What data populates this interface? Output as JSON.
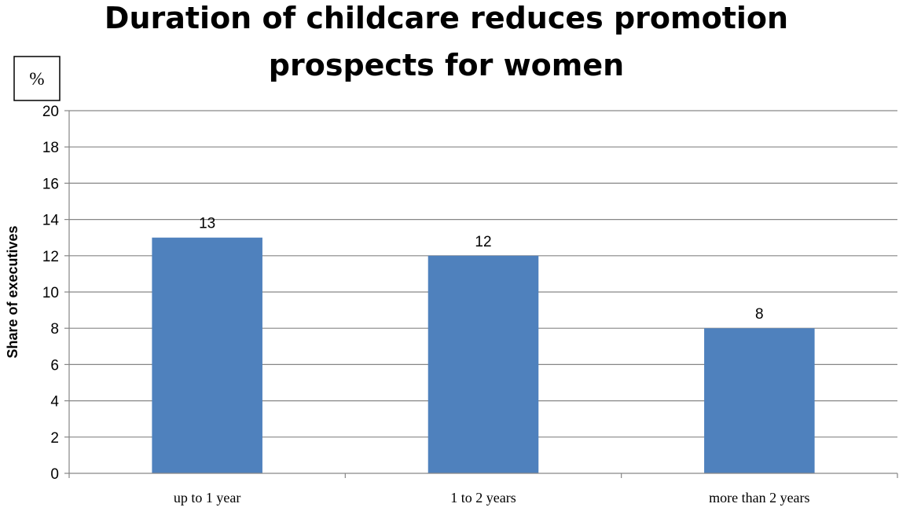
{
  "chart_data": {
    "type": "bar",
    "title_lines": [
      "Duration of childcare reduces promotion",
      "prospects for women"
    ],
    "unit_label": "%",
    "ylabel": "Share of executives",
    "xlabel": "",
    "categories": [
      "up to 1 year",
      "1 to 2 years",
      "more than 2 years"
    ],
    "values": [
      13,
      12,
      8
    ],
    "data_labels": [
      "13",
      "12",
      "8"
    ],
    "ylim": [
      0,
      20
    ],
    "yticks": [
      0,
      2,
      4,
      6,
      8,
      10,
      12,
      14,
      16,
      18,
      20
    ],
    "grid": true,
    "bar_color": "#4F81BD",
    "grid_color": "#868686"
  }
}
